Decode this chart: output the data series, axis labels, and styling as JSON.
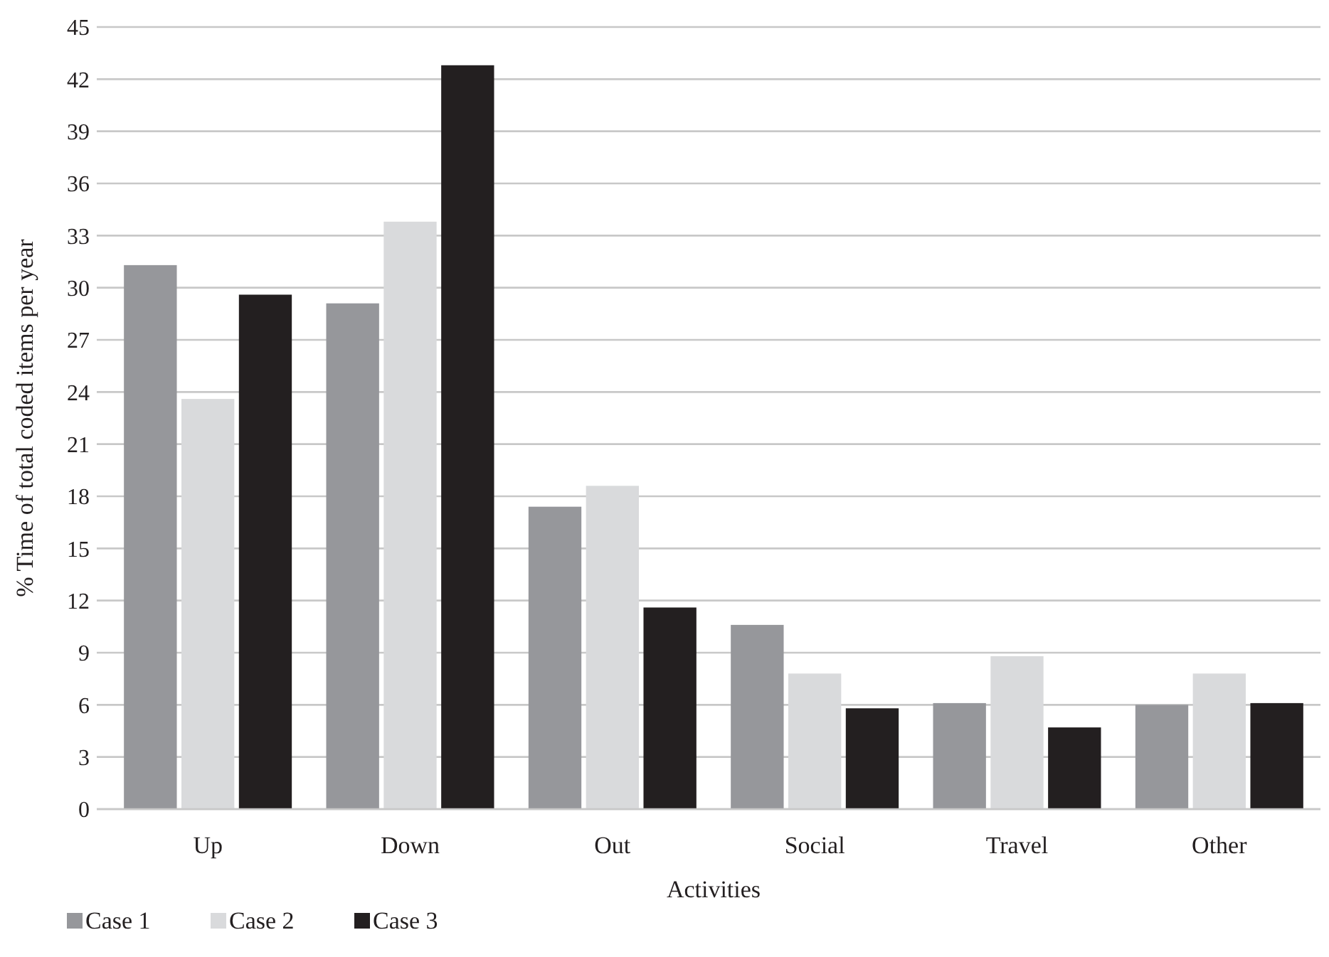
{
  "chart_data": {
    "type": "bar",
    "xlabel": "Activities",
    "ylabel": "% Time of total coded items per year",
    "categories": [
      "Up",
      "Down",
      "Out",
      "Social",
      "Travel",
      "Other"
    ],
    "series": [
      {
        "name": "Case 1",
        "color": "#96979b",
        "values": [
          31.3,
          29.1,
          17.4,
          10.6,
          6.1,
          6.0
        ]
      },
      {
        "name": "Case 2",
        "color": "#d9dadc",
        "values": [
          23.6,
          33.8,
          18.6,
          7.8,
          8.8,
          7.8
        ]
      },
      {
        "name": "Case 3",
        "color": "#231f20",
        "values": [
          29.6,
          42.8,
          11.6,
          5.8,
          4.7,
          6.1
        ]
      }
    ],
    "ylim": [
      0,
      45
    ],
    "yticks": [
      0,
      3,
      6,
      9,
      12,
      15,
      18,
      21,
      24,
      27,
      30,
      33,
      36,
      39,
      42,
      45
    ],
    "grid": "y",
    "legend": "bottom left"
  }
}
